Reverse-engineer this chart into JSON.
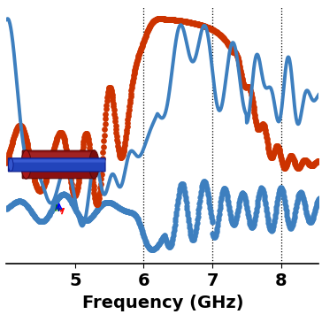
{
  "xlabel": "Frequency (GHz)",
  "xlabel_fontsize": 14,
  "tick_fontsize": 14,
  "xlim": [
    4.0,
    8.55
  ],
  "xticks": [
    5,
    6,
    7,
    8
  ],
  "vlines": [
    6.0,
    7.0,
    8.0
  ],
  "blue_color": "#3D7FBF",
  "red_color": "#CC3300",
  "bg_color": "#ffffff",
  "inset_bg": "#c8d0dc"
}
